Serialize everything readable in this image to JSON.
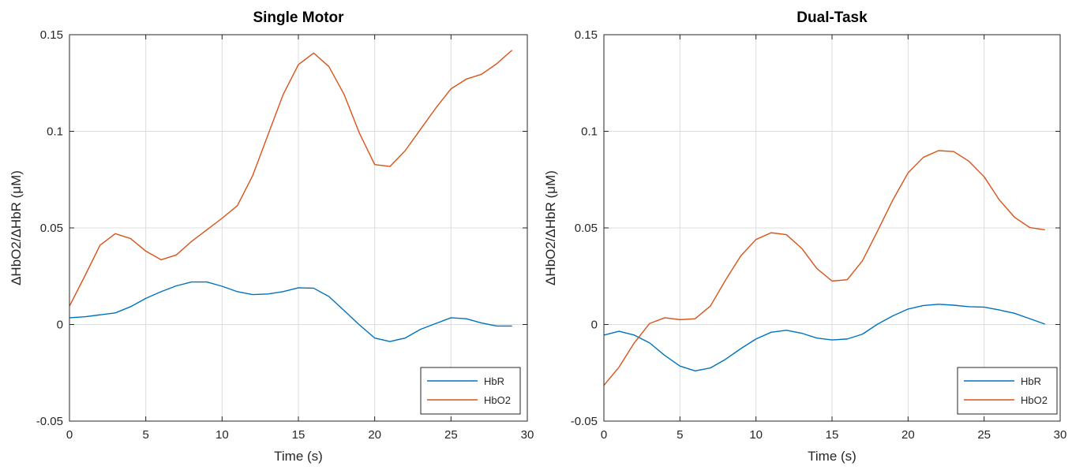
{
  "chart_data": [
    {
      "type": "line",
      "title": "Single Motor",
      "xlabel": "Time (s)",
      "ylabel": "ΔHbO2/ΔHbR (μM)",
      "xlim": [
        0,
        30
      ],
      "ylim": [
        -0.05,
        0.15
      ],
      "xticks": [
        0,
        5,
        10,
        15,
        20,
        25,
        30
      ],
      "xtick_labels": [
        "0",
        "5",
        "10",
        "15",
        "20",
        "25",
        "30"
      ],
      "yticks": [
        -0.05,
        0,
        0.05,
        0.1,
        0.15
      ],
      "ytick_labels": [
        "-0.05",
        "0",
        "0.05",
        "0.1",
        "0.15"
      ],
      "grid": true,
      "legend": "bottom-right",
      "x": [
        0,
        1,
        2,
        3,
        4,
        5,
        6,
        7,
        8,
        9,
        10,
        11,
        12,
        13,
        14,
        15,
        16,
        17,
        18,
        19,
        20,
        21,
        22,
        23,
        24,
        25,
        26,
        27,
        28,
        29
      ],
      "series": [
        {
          "name": "HbR",
          "color": "#0072BD",
          "values": [
            0.0035,
            0.004,
            0.005,
            0.006,
            0.0092,
            0.0135,
            0.017,
            0.02,
            0.022,
            0.022,
            0.0198,
            0.017,
            0.0155,
            0.0158,
            0.017,
            0.019,
            0.0188,
            0.0145,
            0.0072,
            -0.0002,
            -0.007,
            -0.0088,
            -0.007,
            -0.0025,
            0.0005,
            0.0035,
            0.003,
            0.0008,
            -0.0008,
            -0.0008
          ]
        },
        {
          "name": "HbO2",
          "color": "#D95319",
          "values": [
            0.0095,
            0.025,
            0.041,
            0.047,
            0.0445,
            0.038,
            0.0335,
            0.036,
            0.043,
            0.049,
            0.055,
            0.0615,
            0.077,
            0.098,
            0.119,
            0.1345,
            0.1405,
            0.1335,
            0.119,
            0.099,
            0.0828,
            0.0818,
            0.09,
            0.101,
            0.112,
            0.122,
            0.127,
            0.1295,
            0.135,
            0.142
          ]
        }
      ]
    },
    {
      "type": "line",
      "title": "Dual-Task",
      "xlabel": "Time (s)",
      "ylabel": "ΔHbO2/ΔHbR (μM)",
      "xlim": [
        0,
        30
      ],
      "ylim": [
        -0.05,
        0.15
      ],
      "xticks": [
        0,
        5,
        10,
        15,
        20,
        25,
        30
      ],
      "xtick_labels": [
        "0",
        "5",
        "10",
        "15",
        "20",
        "25",
        "30"
      ],
      "yticks": [
        -0.05,
        0,
        0.05,
        0.1,
        0.15
      ],
      "ytick_labels": [
        "-0.05",
        "0",
        "0.05",
        "0.1",
        "0.15"
      ],
      "grid": true,
      "legend": "bottom-right",
      "x": [
        0,
        1,
        2,
        3,
        4,
        5,
        6,
        7,
        8,
        9,
        10,
        11,
        12,
        13,
        14,
        15,
        16,
        17,
        18,
        19,
        20,
        21,
        22,
        23,
        24,
        25,
        26,
        27,
        28,
        29
      ],
      "series": [
        {
          "name": "HbR",
          "color": "#0072BD",
          "values": [
            -0.0055,
            -0.0035,
            -0.0055,
            -0.0095,
            -0.016,
            -0.0215,
            -0.024,
            -0.0225,
            -0.018,
            -0.0125,
            -0.0075,
            -0.004,
            -0.003,
            -0.0045,
            -0.007,
            -0.008,
            -0.0075,
            -0.005,
            0.0002,
            0.0045,
            0.008,
            0.0098,
            0.0105,
            0.01,
            0.0092,
            0.009,
            0.0075,
            0.0058,
            0.003,
            0.0002
          ]
        },
        {
          "name": "HbO2",
          "color": "#D95319",
          "values": [
            -0.0315,
            -0.022,
            -0.0095,
            0.0005,
            0.0035,
            0.0025,
            0.003,
            0.0095,
            0.023,
            0.0355,
            0.044,
            0.0475,
            0.0465,
            0.0395,
            0.029,
            0.0225,
            0.0232,
            0.033,
            0.0485,
            0.0645,
            0.0785,
            0.0865,
            0.09,
            0.0895,
            0.0845,
            0.0765,
            0.0645,
            0.0555,
            0.0502,
            0.049
          ]
        }
      ]
    }
  ]
}
